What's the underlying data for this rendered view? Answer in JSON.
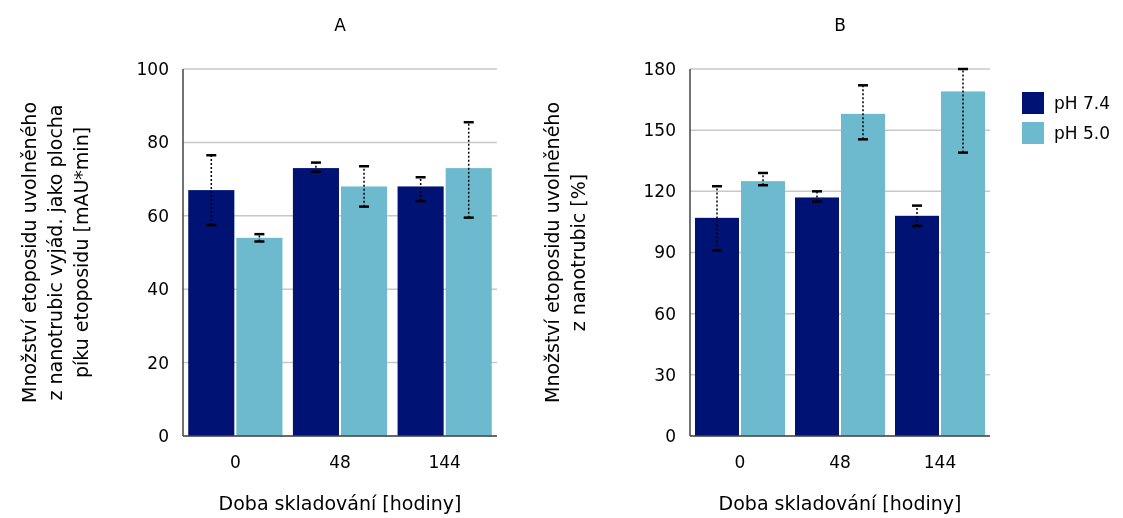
{
  "chart_data": [
    {
      "type": "bar",
      "title": "A",
      "xlabel": "Doba skladování [hodiny]",
      "ylabel": "Množství etoposidu uvolněného\nz nanotrubic vyjád. jako plocha\npíku etoposidu [mAU*min]",
      "categories": [
        "0",
        "48",
        "144"
      ],
      "ylim": [
        0,
        100
      ],
      "yticks": [
        0,
        20,
        40,
        60,
        80,
        100
      ],
      "grid": "y",
      "legend": false,
      "series": [
        {
          "color": "#001274",
          "values": [
            67,
            73,
            68
          ],
          "errors": [
            [
              57.5,
              76.5
            ],
            [
              72,
              74.5
            ],
            [
              64,
              70.5
            ]
          ]
        },
        {
          "color": "#6dbacf",
          "values": [
            54,
            68,
            73
          ],
          "errors": [
            [
              53,
              55
            ],
            [
              62.5,
              73.5
            ],
            [
              59.5,
              85.5
            ]
          ]
        }
      ]
    },
    {
      "type": "bar",
      "title": "B",
      "xlabel": "Doba skladování [hodiny]",
      "ylabel": "Množství etoposidu uvolněného\nz nanotrubic [%]",
      "categories": [
        "0",
        "48",
        "144"
      ],
      "ylim": [
        0,
        180
      ],
      "yticks": [
        0,
        30,
        60,
        90,
        120,
        150,
        180
      ],
      "grid": "y",
      "legend": "right",
      "series": [
        {
          "name": "pH 7.4",
          "color": "#001274",
          "values": [
            107,
            117,
            108
          ],
          "errors": [
            [
              91,
              122.5
            ],
            [
              115,
              120
            ],
            [
              103,
              113
            ]
          ]
        },
        {
          "name": "pH 5.0",
          "color": "#6dbacf",
          "values": [
            125,
            158,
            169
          ],
          "errors": [
            [
              123,
              129
            ],
            [
              145.5,
              172
            ],
            [
              139,
              180
            ]
          ]
        }
      ]
    }
  ]
}
